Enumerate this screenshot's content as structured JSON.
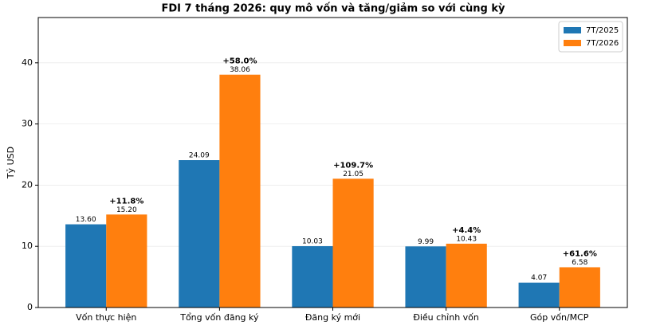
{
  "chart_data": {
    "type": "bar",
    "title": "FDI 7 tháng 2026: quy mô vốn và tăng/giảm so với cùng kỳ",
    "y_label": "Tỷ USD",
    "categories": [
      "Vốn thực hiện",
      "Tổng vốn đăng ký",
      "Đăng ký mới",
      "Điều chỉnh vốn",
      "Góp vốn/MCP"
    ],
    "series": [
      {
        "name": "7T/2025",
        "color": "#1f77b4",
        "values": [
          13.6,
          24.09,
          10.03,
          9.99,
          4.07
        ],
        "value_labels": [
          "13.60",
          "24.09",
          "10.03",
          "9.99",
          "4.07"
        ]
      },
      {
        "name": "7T/2026",
        "color": "#ff7f0e",
        "values": [
          15.2,
          38.06,
          21.05,
          10.43,
          6.58
        ],
        "value_labels": [
          "15.20",
          "38.06",
          "21.05",
          "10.43",
          "6.58"
        ]
      }
    ],
    "annotations": [
      "+11.8%",
      "+58.0%",
      "+109.7%",
      "+4.4%",
      "+61.6%"
    ],
    "ylim": [
      0,
      47.4
    ],
    "yticks": [
      0,
      10,
      20,
      30,
      40
    ],
    "grid": true,
    "legend": "upper right"
  }
}
